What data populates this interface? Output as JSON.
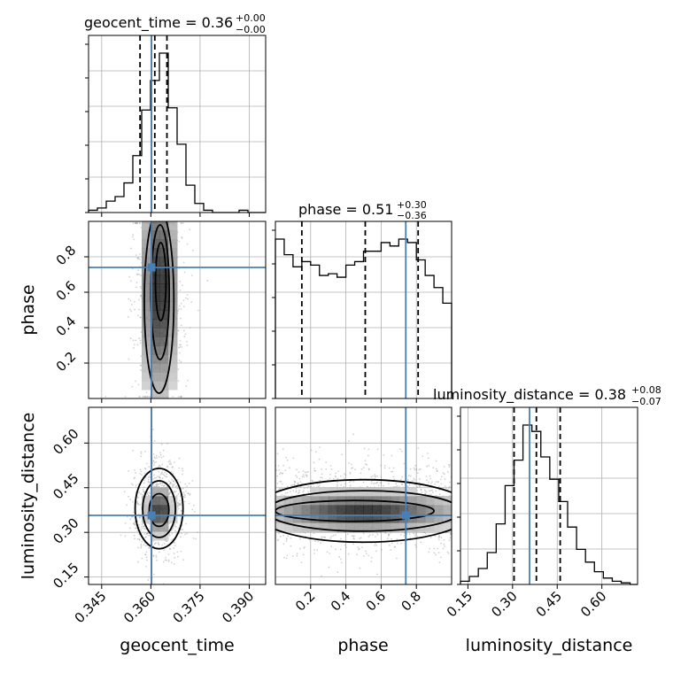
{
  "chart_data": {
    "type": "corner",
    "parameters": [
      {
        "name": "geocent_time",
        "median": "0.36",
        "plus": "+0.00",
        "minus": "−0.00",
        "range": [
          0.341,
          0.395
        ],
        "ticks": [
          0.345,
          0.36,
          0.375,
          0.39
        ],
        "tick_labels": [
          "0.345",
          "0.360",
          "0.375",
          "0.390"
        ],
        "quantiles": [
          0.3567,
          0.3612,
          0.3649
        ],
        "truth": 0.3602,
        "hist_edges": [
          0.341,
          0.3437,
          0.3464,
          0.3491,
          0.3518,
          0.3545,
          0.3572,
          0.3599,
          0.3626,
          0.3653,
          0.368,
          0.3707,
          0.3734,
          0.3761,
          0.3788,
          0.3815,
          0.3842,
          0.3869,
          0.3896,
          0.3923,
          0.395
        ],
        "hist_counts": [
          1,
          2,
          5,
          7,
          13,
          25,
          45,
          58,
          70,
          46,
          30,
          12,
          4,
          1,
          0,
          0,
          0,
          1,
          0,
          0
        ]
      },
      {
        "name": "phase",
        "median": "0.51",
        "plus": "+0.30",
        "minus": "−0.36",
        "range": [
          0.0,
          1.0
        ],
        "ticks": [
          0.2,
          0.4,
          0.6,
          0.8
        ],
        "tick_labels": [
          "0.2",
          "0.4",
          "0.6",
          "0.8"
        ],
        "quantiles": [
          0.15,
          0.51,
          0.81
        ],
        "truth": 0.74,
        "hist_edges": [
          0.0,
          0.05,
          0.1,
          0.15,
          0.2,
          0.25,
          0.3,
          0.35,
          0.4,
          0.45,
          0.5,
          0.55,
          0.6,
          0.65,
          0.7,
          0.75,
          0.8,
          0.85,
          0.9,
          0.95,
          1.0
        ],
        "hist_counts": [
          0.92,
          0.83,
          0.76,
          0.79,
          0.77,
          0.71,
          0.72,
          0.7,
          0.77,
          0.79,
          0.85,
          0.85,
          0.9,
          0.88,
          0.92,
          0.9,
          0.8,
          0.71,
          0.64,
          0.55
        ]
      },
      {
        "name": "luminosity_distance",
        "median": "0.38",
        "plus": "+0.08",
        "minus": "−0.07",
        "range": [
          0.125,
          0.72
        ],
        "ticks": [
          0.15,
          0.3,
          0.45,
          0.6
        ],
        "tick_labels": [
          "0.15",
          "0.30",
          "0.45",
          "0.60"
        ],
        "quantiles": [
          0.305,
          0.38,
          0.46
        ],
        "truth": 0.357,
        "hist_edges": [
          0.125,
          0.155,
          0.185,
          0.215,
          0.245,
          0.275,
          0.305,
          0.335,
          0.365,
          0.395,
          0.425,
          0.455,
          0.485,
          0.515,
          0.545,
          0.575,
          0.605,
          0.635,
          0.665,
          0.695,
          0.72
        ],
        "hist_counts": [
          2,
          5,
          10,
          20,
          38,
          62,
          78,
          100,
          96,
          80,
          66,
          52,
          36,
          22,
          14,
          8,
          4,
          2,
          1,
          0
        ]
      }
    ],
    "panels": [
      {
        "type": "histogram",
        "x": "geocent_time"
      },
      {
        "type": "2d-density",
        "x": "geocent_time",
        "y": "phase"
      },
      {
        "type": "histogram",
        "x": "phase"
      },
      {
        "type": "2d-density",
        "x": "geocent_time",
        "y": "luminosity_distance"
      },
      {
        "type": "2d-density",
        "x": "phase",
        "y": "luminosity_distance"
      },
      {
        "type": "histogram",
        "x": "luminosity_distance"
      }
    ],
    "truth_values": {
      "geocent_time": 0.3602,
      "phase": 0.74,
      "luminosity_distance": 0.357
    },
    "grid": true
  },
  "titles": {
    "geocent_time": {
      "main": "geocent_time = 0.36",
      "sup": "+0.00",
      "sub": "−0.00"
    },
    "phase": {
      "main": "phase = 0.51",
      "sup": "+0.30",
      "sub": "−0.36"
    },
    "luminosity_distance": {
      "main": "luminosity_distance = 0.38",
      "sup": "+0.08",
      "sub": "−0.07"
    }
  },
  "axis_labels": {
    "x_geocent_time": "geocent_time",
    "x_phase": "phase",
    "x_luminosity_distance": "luminosity_distance",
    "y_phase": "phase",
    "y_luminosity_distance": "luminosity_distance"
  }
}
